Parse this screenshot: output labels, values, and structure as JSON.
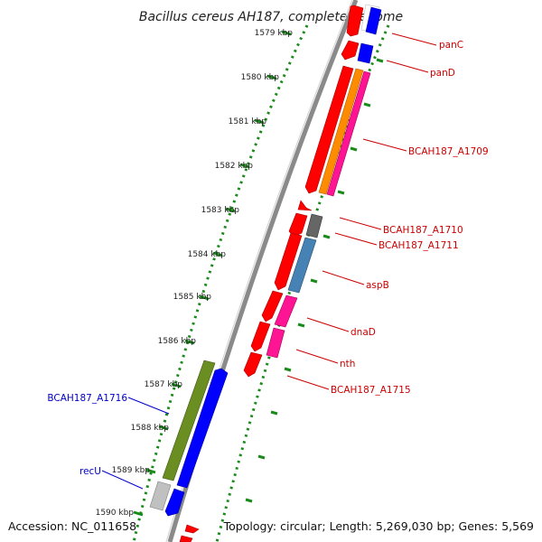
{
  "title": "Bacillus cereus AH187, complete genome",
  "footer": {
    "accession": "Accession: NC_011658",
    "topology": "Topology: circular; Length: 5,269,030 bp; Genes: 5,569"
  },
  "colors": {
    "forward_label": "#cc0000",
    "reverse_label": "#0000cc",
    "backbone": "#8a8a8a",
    "tick_dots": "#1a8a1a",
    "tick_dash": "#1a8a1a"
  },
  "ticks": [
    {
      "label": "1579 kbp"
    },
    {
      "label": "1580 kbp"
    },
    {
      "label": "1581 kbp"
    },
    {
      "label": "1582 kbp"
    },
    {
      "label": "1583 kbp"
    },
    {
      "label": "1584 kbp"
    },
    {
      "label": "1585 kbp"
    },
    {
      "label": "1586 kbp"
    },
    {
      "label": "1587 kbp"
    },
    {
      "label": "1588 kbp"
    },
    {
      "label": "1589 kbp"
    },
    {
      "label": "1590 kbp"
    }
  ],
  "gene_labels": {
    "panC": "panC",
    "panD": "panD",
    "a1709": "BCAH187_A1709",
    "a1710": "BCAH187_A1710",
    "a1711": "BCAH187_A1711",
    "aspB": "aspB",
    "dnaD": "dnaD",
    "nth": "nth",
    "a1715": "BCAH187_A1715",
    "a1716": "BCAH187_A1716",
    "recU": "recU"
  }
}
